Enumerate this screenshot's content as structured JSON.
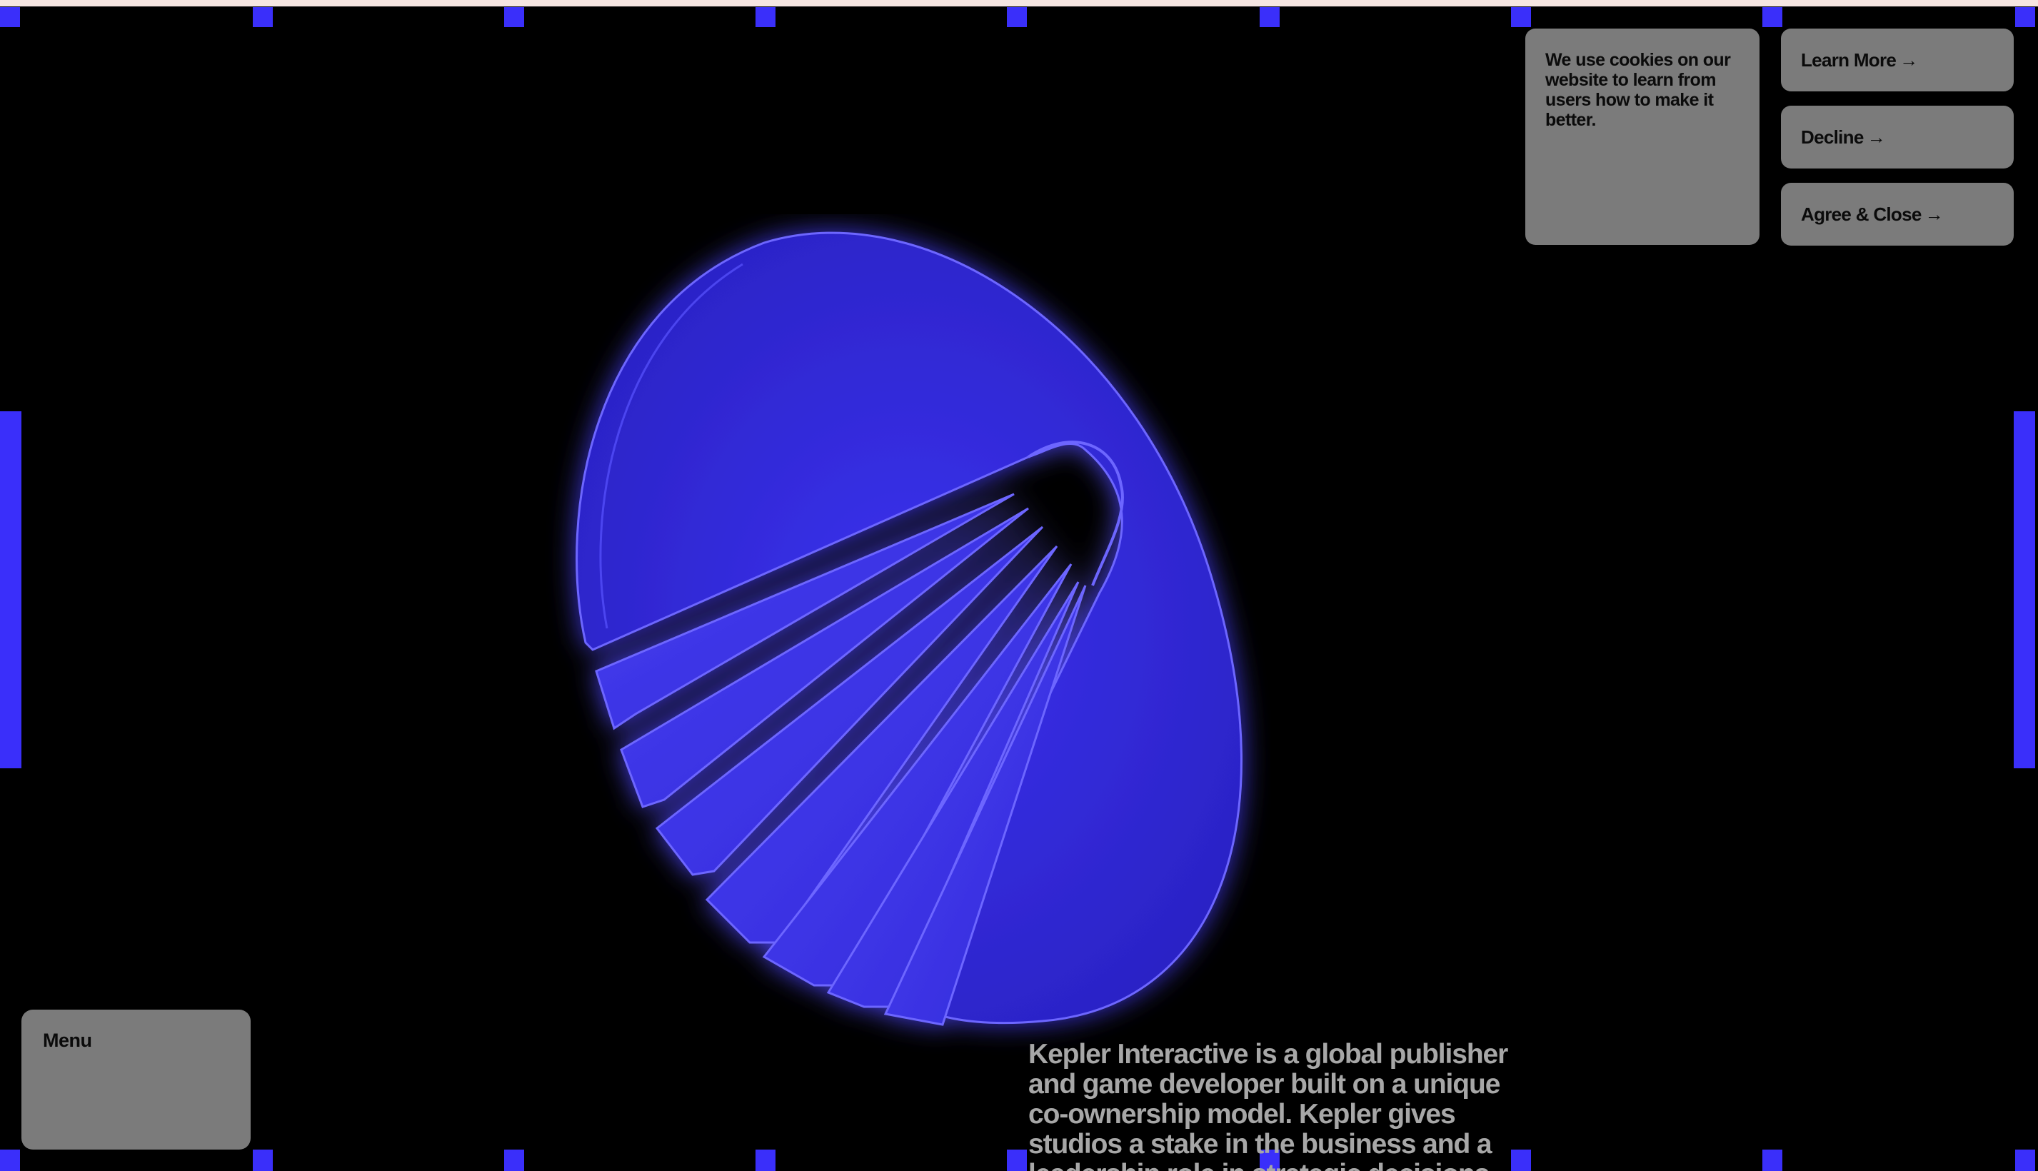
{
  "cookie_banner": {
    "message": "We use cookies on our website to learn from users how to make it better.",
    "buttons": {
      "learn_more": "Learn More",
      "decline": "Decline",
      "agree_close": "Agree & Close"
    },
    "arrow_glyph": "→"
  },
  "menu": {
    "label": "Menu"
  },
  "intro": {
    "text": "Kepler Interactive is a global publisher and game developer built on a unique co-ownership model. Kepler gives studios a stake in the business and a leadership role in strategic decisions."
  },
  "logo": {
    "icon": "kepler-fan-logo-icon"
  },
  "colors": {
    "background": "#000000",
    "accent": "#3a2ffa",
    "card": "#7b7b7b",
    "intro_text": "#a7a7a7",
    "top_strip": "#f6e6e2"
  }
}
